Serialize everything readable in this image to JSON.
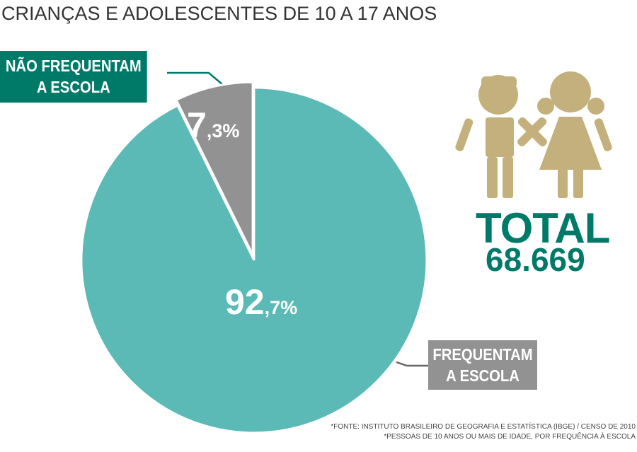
{
  "title": "CRIANÇAS E ADOLESCENTES DE 10 A 17 ANOS",
  "chart_data": {
    "type": "pie",
    "title": "CRIANÇAS E ADOLESCENTES DE 10 A 17 ANOS",
    "slices": [
      {
        "label": "NÃO FREQUENTAM A ESCOLA",
        "value": 7.3,
        "display_int": "7",
        "display_dec": ",3%",
        "color": "#929292"
      },
      {
        "label": "FREQUENTAM A ESCOLA",
        "value": 92.7,
        "display_int": "92",
        "display_dec": ",7%",
        "color": "#5bbab5"
      }
    ],
    "legend_labels": {
      "nao_line1": "NÃO FREQUENTAM",
      "nao_line2": "A ESCOLA",
      "sim_line1": "FREQUENTAM",
      "sim_line2": "A ESCOLA"
    }
  },
  "total": {
    "label": "TOTAL",
    "value": "68.669"
  },
  "colors": {
    "accent": "#007a68",
    "teal": "#5bbab5",
    "gray": "#929292",
    "tan": "#c4b07c"
  },
  "icon": "children-holding-hands-icon",
  "footnotes": [
    "*FONTE: INSTITUTO BRASILEIRO DE GEOGRAFIA E ESTATÍSTICA (IBGE) / CENSO DE 2010",
    "*PESSOAS DE 10 ANOS OU MAIS DE IDADE, POR FREQUÊNCIA À ESCOLA"
  ]
}
